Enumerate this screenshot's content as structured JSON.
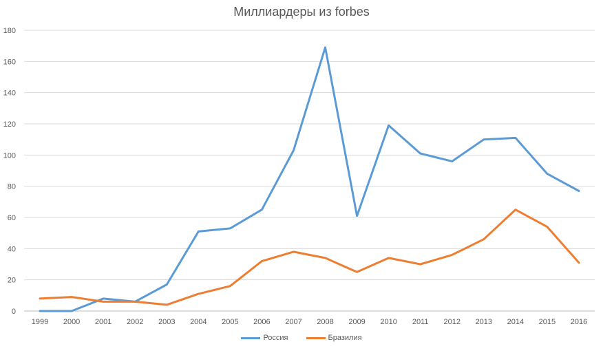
{
  "chart_data": {
    "type": "line",
    "title": "Миллиардеры из forbes",
    "xlabel": "",
    "ylabel": "",
    "categories": [
      "1999",
      "2000",
      "2001",
      "2002",
      "2003",
      "2004",
      "2005",
      "2006",
      "2007",
      "2008",
      "2009",
      "2010",
      "2011",
      "2012",
      "2013",
      "2014",
      "2015",
      "2016"
    ],
    "ylim": [
      0,
      180
    ],
    "yticks": [
      0,
      20,
      40,
      60,
      80,
      100,
      120,
      140,
      160,
      180
    ],
    "grid": true,
    "legend_position": "bottom",
    "series": [
      {
        "name": "Россия",
        "color": "#5b9bd5",
        "values": [
          0,
          0,
          8,
          6,
          17,
          51,
          53,
          65,
          103,
          169,
          61,
          119,
          101,
          96,
          110,
          111,
          88,
          77
        ]
      },
      {
        "name": "Бразилия",
        "color": "#ed7d31",
        "values": [
          8,
          9,
          6,
          6,
          4,
          11,
          16,
          32,
          38,
          34,
          25,
          34,
          30,
          36,
          46,
          65,
          54,
          31
        ]
      }
    ]
  }
}
